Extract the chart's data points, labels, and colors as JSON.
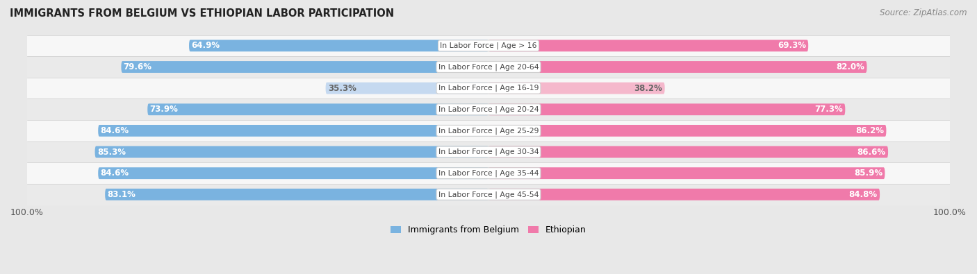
{
  "title": "IMMIGRANTS FROM BELGIUM VS ETHIOPIAN LABOR PARTICIPATION",
  "source": "Source: ZipAtlas.com",
  "categories": [
    "In Labor Force | Age > 16",
    "In Labor Force | Age 20-64",
    "In Labor Force | Age 16-19",
    "In Labor Force | Age 20-24",
    "In Labor Force | Age 25-29",
    "In Labor Force | Age 30-34",
    "In Labor Force | Age 35-44",
    "In Labor Force | Age 45-54"
  ],
  "belgium_values": [
    64.9,
    79.6,
    35.3,
    73.9,
    84.6,
    85.3,
    84.6,
    83.1
  ],
  "ethiopian_values": [
    69.3,
    82.0,
    38.2,
    77.3,
    86.2,
    86.6,
    85.9,
    84.8
  ],
  "belgium_color": "#7ab3e0",
  "belgian_light_color": "#c5d9f0",
  "ethiopian_color": "#f07aaa",
  "ethiopian_light_color": "#f5b8cc",
  "bg_color": "#e8e8e8",
  "row_bg_even": "#f7f7f7",
  "row_bg_odd": "#eaeaea",
  "legend_belgium": "Immigrants from Belgium",
  "legend_ethiopian": "Ethiopian",
  "axis_label_left": "100.0%",
  "axis_label_right": "100.0%",
  "bar_height": 0.55,
  "max_val": 100.0,
  "value_threshold": 50
}
